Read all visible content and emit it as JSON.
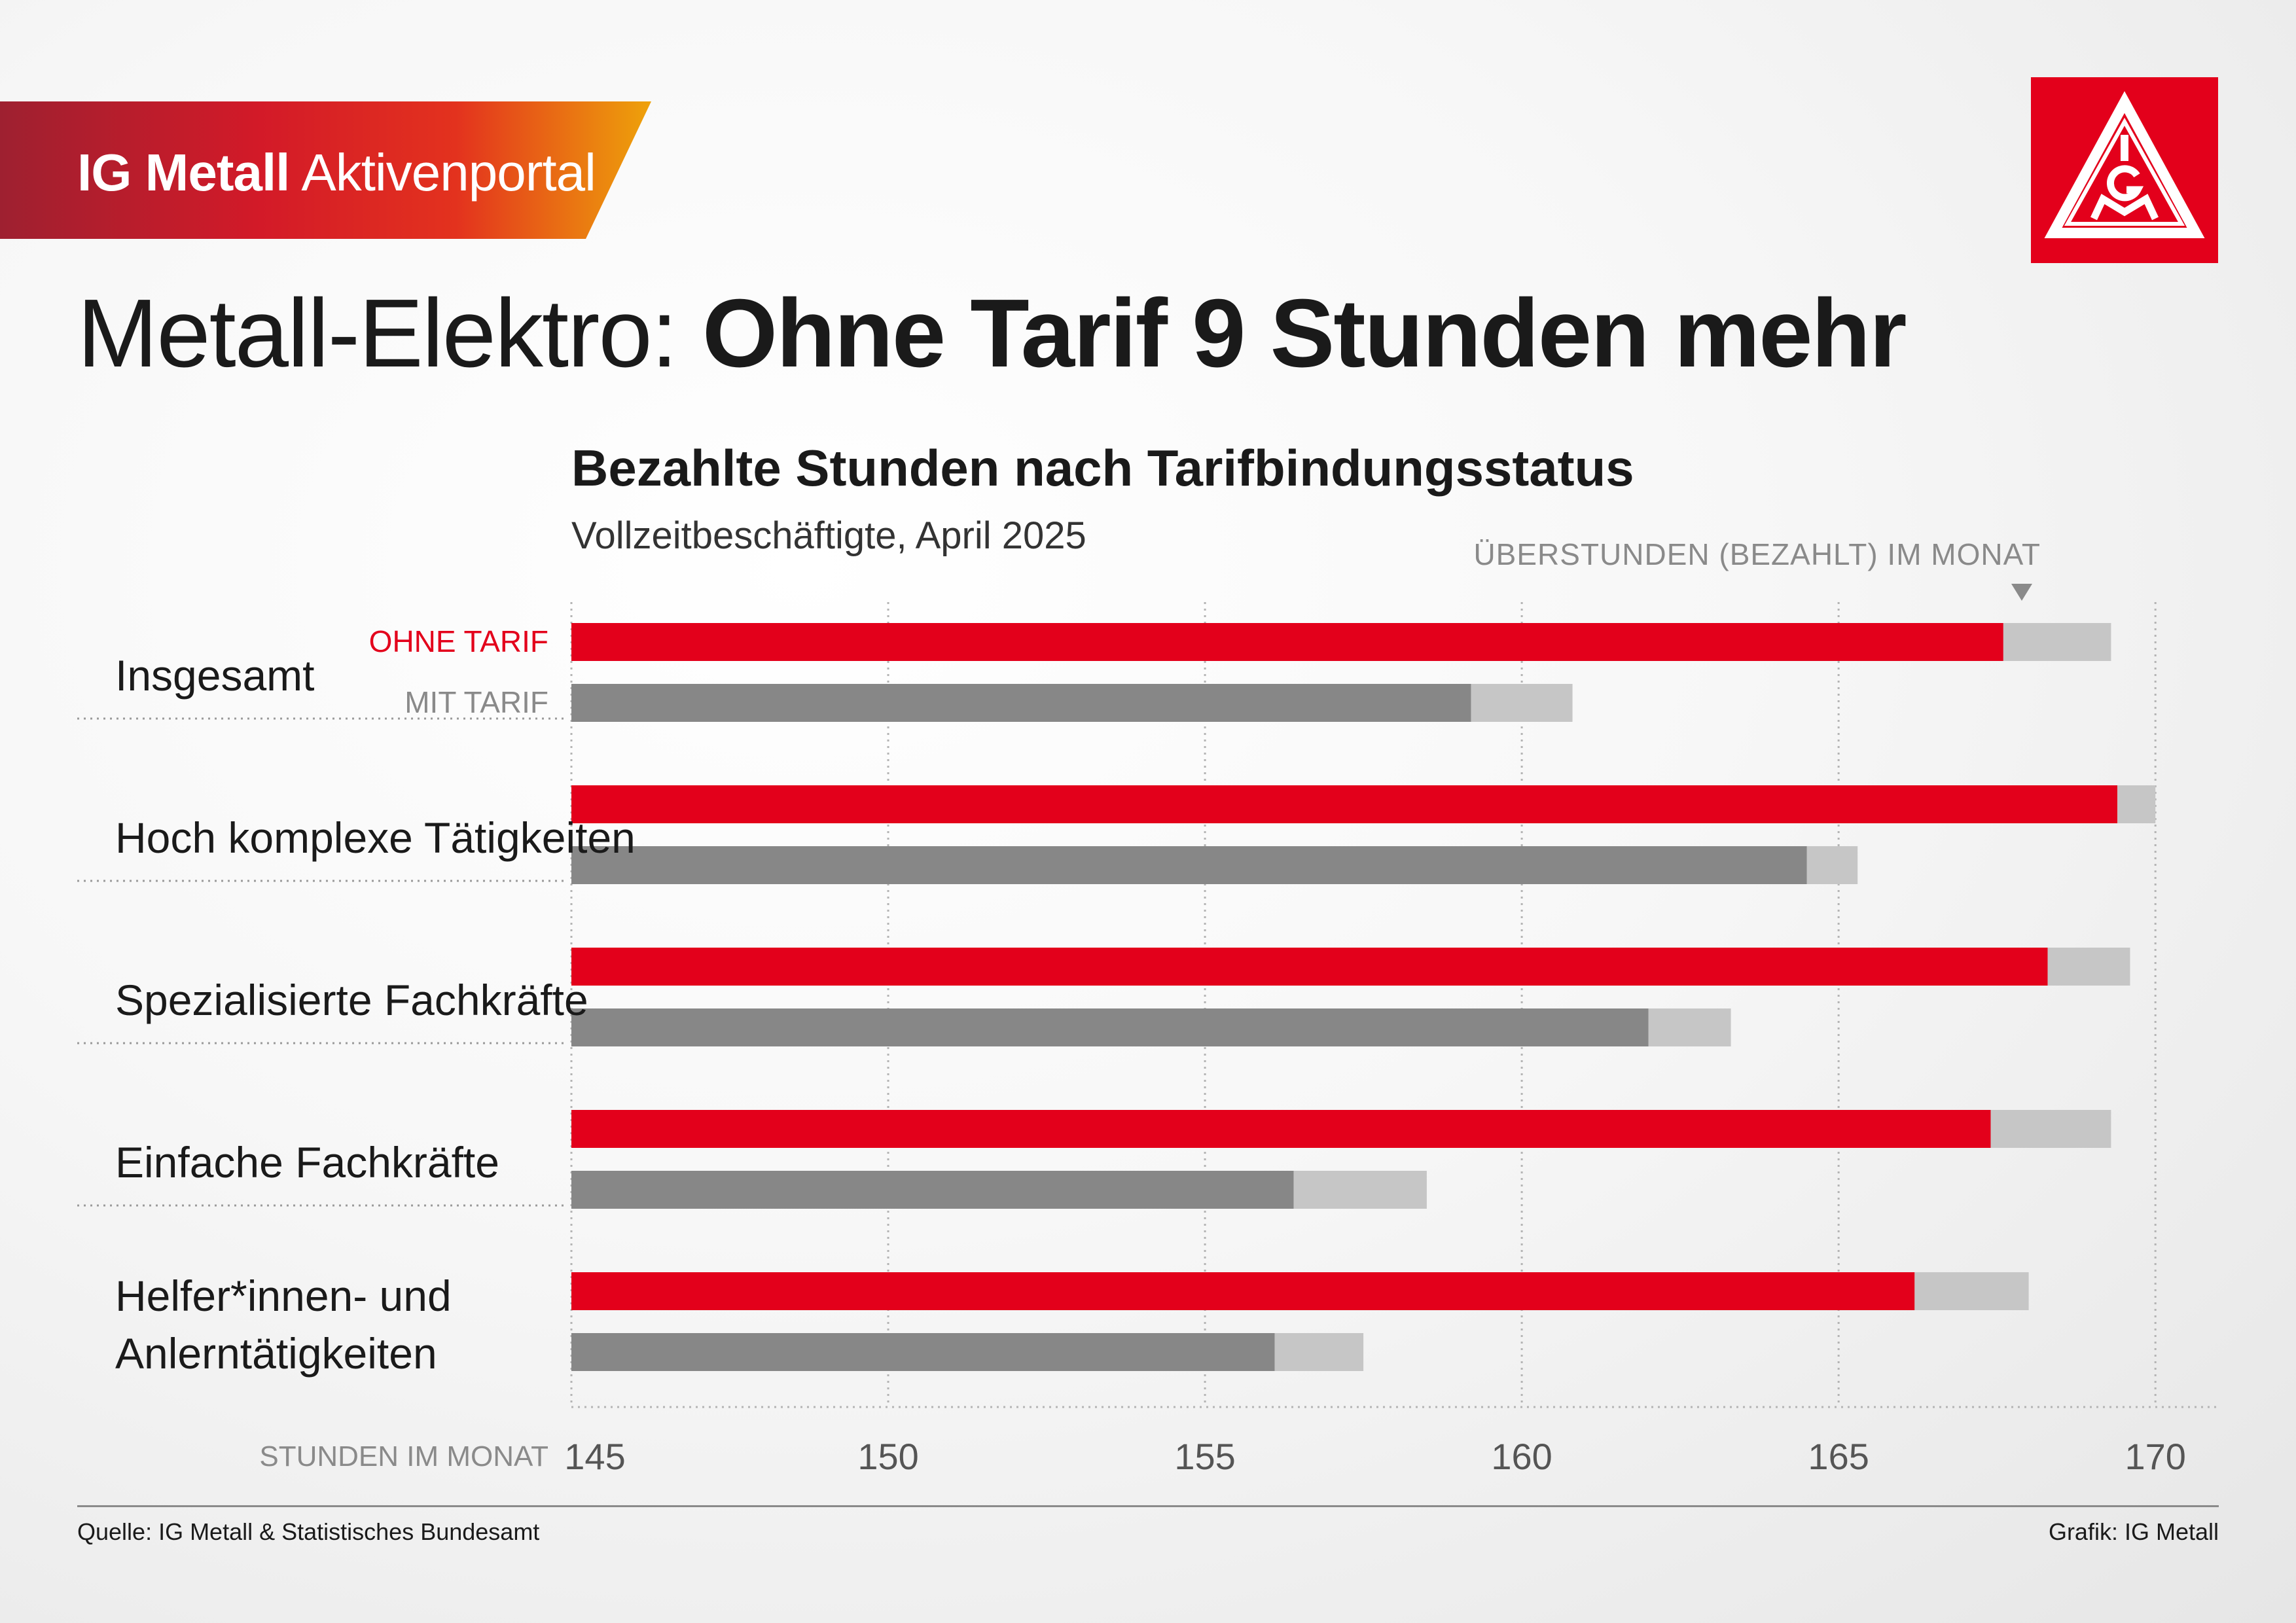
{
  "brand": {
    "name_bold": "IG Metall",
    "name_light": "Aktivenportal",
    "logo_text": "IGM",
    "colors": {
      "red": "#e3001b",
      "grey_dark": "#878787",
      "grey_light": "#c6c6c6"
    }
  },
  "headline": {
    "light": "Metall-Elektro:",
    "bold": "Ohne Tarif 9 Stunden mehr"
  },
  "chart_data": {
    "type": "bar",
    "orientation": "horizontal",
    "stacked": true,
    "title": "Bezahlte Stunden nach Tarifbindungsstatus",
    "subtitle": "Vollzeitbeschäftigte, April 2025",
    "overtime_label": "ÜBERSTUNDEN (BEZAHLT) IM MONAT",
    "xlabel": "STUNDEN IM MONAT",
    "xlim": [
      145,
      171
    ],
    "xticks": [
      145,
      150,
      155,
      160,
      165,
      170
    ],
    "grid": true,
    "series_labels": {
      "ohne": "OHNE TARIF",
      "mit": "MIT TARIF"
    },
    "categories": [
      {
        "label": [
          "Insgesamt"
        ],
        "ohne": {
          "base": 167.6,
          "overtime": 1.7
        },
        "mit": {
          "base": 159.2,
          "overtime": 1.6
        }
      },
      {
        "label": [
          "Hoch komplexe Tätigkeiten"
        ],
        "ohne": {
          "base": 169.4,
          "overtime": 0.6
        },
        "mit": {
          "base": 164.5,
          "overtime": 0.8
        }
      },
      {
        "label": [
          "Spezialisierte Fachkräfte"
        ],
        "ohne": {
          "base": 168.3,
          "overtime": 1.3
        },
        "mit": {
          "base": 162.0,
          "overtime": 1.3
        }
      },
      {
        "label": [
          "Einfache Fachkräfte"
        ],
        "ohne": {
          "base": 167.4,
          "overtime": 1.9
        },
        "mit": {
          "base": 156.4,
          "overtime": 2.1
        }
      },
      {
        "label": [
          "Helfer*innen- und",
          "Anlerntätigkeiten"
        ],
        "ohne": {
          "base": 166.2,
          "overtime": 1.8
        },
        "mit": {
          "base": 156.1,
          "overtime": 1.4
        }
      }
    ]
  },
  "footer": {
    "source": "Quelle: IG Metall & Statistisches Bundesamt",
    "credit": "Grafik: IG Metall"
  }
}
